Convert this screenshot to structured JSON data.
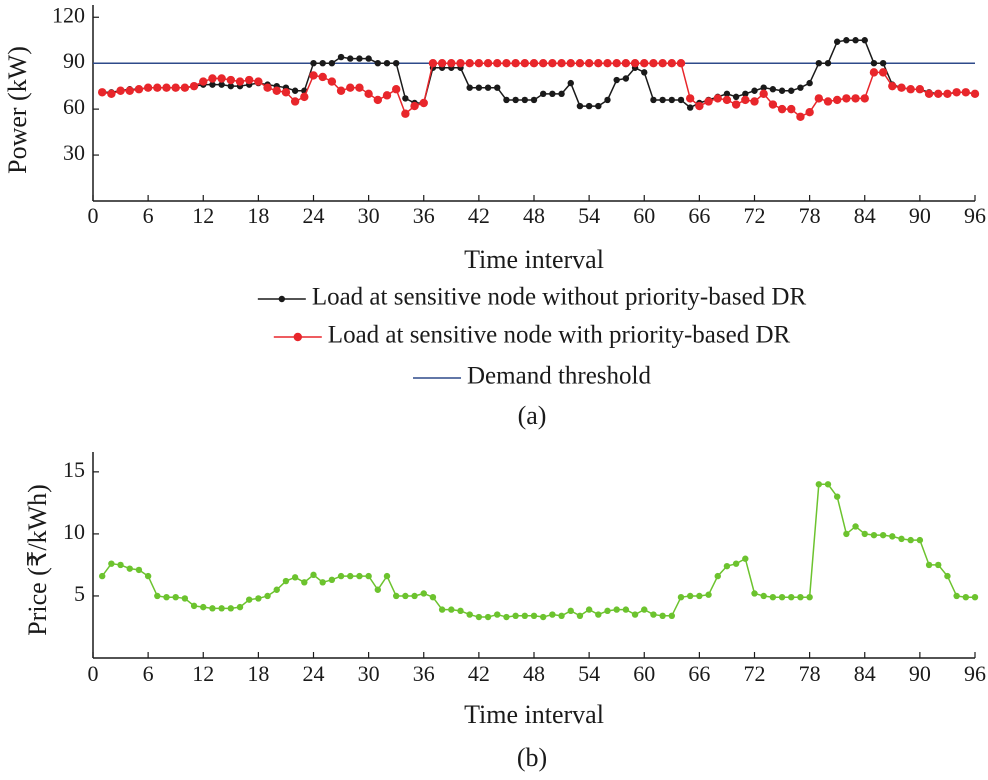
{
  "chart_data": [
    {
      "type": "line",
      "caption": "(a)",
      "ylabel": "Power (kW)",
      "xlabel": "Time interval",
      "xlim": [
        0,
        96
      ],
      "xticks": [
        0,
        6,
        12,
        18,
        24,
        30,
        36,
        42,
        48,
        54,
        60,
        66,
        72,
        78,
        84,
        90,
        96
      ],
      "ylim": [
        0,
        128
      ],
      "yticks": [
        30,
        60,
        90,
        120
      ],
      "x": [
        1,
        2,
        3,
        4,
        5,
        6,
        7,
        8,
        9,
        10,
        11,
        12,
        13,
        14,
        15,
        16,
        17,
        18,
        19,
        20,
        21,
        22,
        23,
        24,
        25,
        26,
        27,
        28,
        29,
        30,
        31,
        32,
        33,
        34,
        35,
        36,
        37,
        38,
        39,
        40,
        41,
        42,
        43,
        44,
        45,
        46,
        47,
        48,
        49,
        50,
        51,
        52,
        53,
        54,
        55,
        56,
        57,
        58,
        59,
        60,
        61,
        62,
        63,
        64,
        65,
        66,
        67,
        68,
        69,
        70,
        71,
        72,
        73,
        74,
        75,
        76,
        77,
        78,
        79,
        80,
        81,
        82,
        83,
        84,
        85,
        86,
        87,
        88,
        89,
        90,
        91,
        92,
        93,
        94,
        95,
        96
      ],
      "series": [
        {
          "name": "Load at sensitive node without priority-based DR",
          "color": "#1a1a1a",
          "values": [
            71,
            71,
            72,
            73,
            73,
            74,
            74,
            74,
            74,
            74,
            75,
            76,
            76,
            76,
            75,
            75,
            76,
            77,
            76,
            75,
            74,
            72,
            72,
            90,
            90,
            90,
            94,
            93,
            93,
            93,
            90,
            90,
            90,
            67,
            64,
            64,
            87,
            87,
            87,
            87,
            74,
            74,
            74,
            74,
            66,
            66,
            66,
            66,
            70,
            70,
            70,
            77,
            62,
            62,
            62,
            66,
            79,
            80,
            87,
            84,
            66,
            66,
            66,
            66,
            61,
            64,
            66,
            68,
            70,
            68,
            70,
            72,
            74,
            73,
            72,
            72,
            74,
            77,
            90,
            90,
            104,
            105,
            105,
            105,
            90,
            90,
            76,
            74,
            73,
            73,
            71,
            70,
            70,
            71,
            71,
            70
          ]
        },
        {
          "name": "Load at sensitive node with priority-based DR",
          "color": "#e8262b",
          "values": [
            71,
            70,
            72,
            72,
            73,
            74,
            74,
            74,
            74,
            74,
            75,
            78,
            80,
            80,
            79,
            78,
            79,
            78,
            74,
            72,
            71,
            65,
            68,
            82,
            81,
            78,
            72,
            74,
            74,
            70,
            66,
            69,
            73,
            57,
            62,
            64,
            90,
            90,
            90,
            90,
            90,
            90,
            90,
            90,
            90,
            90,
            90,
            90,
            90,
            90,
            90,
            90,
            90,
            90,
            90,
            90,
            90,
            90,
            90,
            90,
            90,
            90,
            90,
            90,
            67,
            62,
            65,
            67,
            66,
            63,
            66,
            65,
            70,
            63,
            60,
            60,
            55,
            58,
            67,
            65,
            66,
            67,
            67,
            67,
            84,
            84,
            75,
            74,
            73,
            73,
            70,
            70,
            70,
            71,
            71,
            70
          ]
        }
      ],
      "threshold": {
        "name": "Demand threshold",
        "color": "#2e4a8a",
        "value": 90
      }
    },
    {
      "type": "line",
      "caption": "(b)",
      "ylabel": "Price (₹/kWh)",
      "xlabel": "Time interval",
      "xlim": [
        0,
        96
      ],
      "xticks": [
        0,
        6,
        12,
        18,
        24,
        30,
        36,
        42,
        48,
        54,
        60,
        66,
        72,
        78,
        84,
        90,
        96
      ],
      "ylim": [
        0,
        16.6
      ],
      "yticks": [
        5,
        10,
        15
      ],
      "x": [
        1,
        2,
        3,
        4,
        5,
        6,
        7,
        8,
        9,
        10,
        11,
        12,
        13,
        14,
        15,
        16,
        17,
        18,
        19,
        20,
        21,
        22,
        23,
        24,
        25,
        26,
        27,
        28,
        29,
        30,
        31,
        32,
        33,
        34,
        35,
        36,
        37,
        38,
        39,
        40,
        41,
        42,
        43,
        44,
        45,
        46,
        47,
        48,
        49,
        50,
        51,
        52,
        53,
        54,
        55,
        56,
        57,
        58,
        59,
        60,
        61,
        62,
        63,
        64,
        65,
        66,
        67,
        68,
        69,
        70,
        71,
        72,
        73,
        74,
        75,
        76,
        77,
        78,
        79,
        80,
        81,
        82,
        83,
        84,
        85,
        86,
        87,
        88,
        89,
        90,
        91,
        92,
        93,
        94,
        95,
        96
      ],
      "series": [
        {
          "color": "#6cc32e",
          "values": [
            6.6,
            7.6,
            7.5,
            7.2,
            7.1,
            6.6,
            5.0,
            4.9,
            4.9,
            4.8,
            4.2,
            4.1,
            4.0,
            4.0,
            4.0,
            4.1,
            4.7,
            4.8,
            5.0,
            5.5,
            6.2,
            6.5,
            6.1,
            6.7,
            6.1,
            6.3,
            6.6,
            6.6,
            6.6,
            6.6,
            5.5,
            6.6,
            5.0,
            5.0,
            5.0,
            5.2,
            4.9,
            3.9,
            3.9,
            3.8,
            3.5,
            3.3,
            3.3,
            3.5,
            3.3,
            3.4,
            3.4,
            3.4,
            3.3,
            3.5,
            3.4,
            3.8,
            3.4,
            3.9,
            3.5,
            3.8,
            3.9,
            3.9,
            3.5,
            3.9,
            3.5,
            3.4,
            3.4,
            4.9,
            5.0,
            5.0,
            5.1,
            6.6,
            7.4,
            7.6,
            8.0,
            5.2,
            5.0,
            4.9,
            4.9,
            4.9,
            4.9,
            4.9,
            14,
            14,
            13,
            10,
            10.6,
            10,
            9.9,
            9.9,
            9.8,
            9.6,
            9.5,
            9.5,
            7.5,
            7.5,
            6.6,
            5.0,
            4.9,
            4.9
          ]
        }
      ]
    }
  ]
}
